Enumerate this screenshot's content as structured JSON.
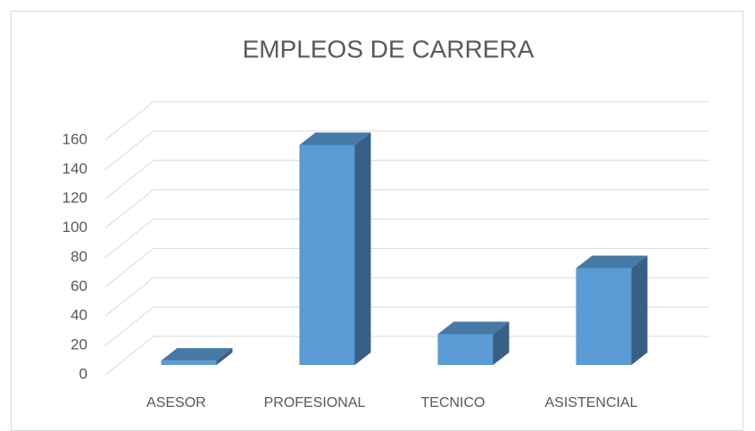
{
  "chart_data": {
    "type": "bar",
    "title": "EMPLEOS DE CARRERA",
    "categories": [
      "ASESOR",
      "PROFESIONAL",
      "TECNICO",
      "ASISTENCIAL"
    ],
    "values": [
      3,
      150,
      21,
      66
    ],
    "color": "#5b9bd5",
    "ylim": [
      0,
      160
    ],
    "yticks": [
      0,
      20,
      40,
      60,
      80,
      100,
      120,
      140,
      160
    ],
    "grid": true
  }
}
